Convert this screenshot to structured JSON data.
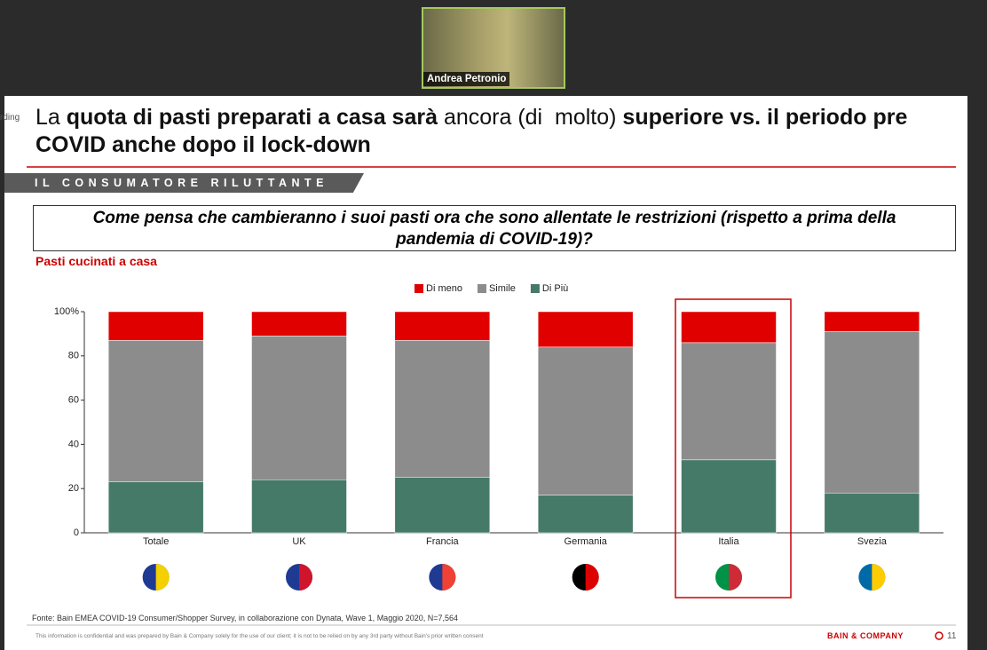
{
  "call": {
    "participant": "Andrea Petronio",
    "recording_fragment": "rding"
  },
  "slide": {
    "title_parts": [
      {
        "text": "La ",
        "bold": false
      },
      {
        "text": "quota di pasti preparati a casa sarà",
        "bold": true
      },
      {
        "text": " ancora (di  molto) ",
        "bold": false
      },
      {
        "text": "superiore vs. il periodo pre COVID anche dopo il lock-down",
        "bold": true
      }
    ],
    "section": "IL CONSUMATORE RILUTTANTE",
    "question": "Come pensa che cambieranno i suoi pasti ora che sono allentate le restrizioni (rispetto a prima della pandemia di COVID-19)?",
    "chart_label": "Pasti cucinati a casa",
    "source": "Fonte: Bain EMEA COVID-19 Consumer/Shopper Survey, in collaborazione con Dynata, Wave 1, Maggio 2020, N=7,564",
    "disclaimer": "This information is confidential and was prepared by Bain & Company solely for the use of our client; it is not to be relied on by any 3rd party without Bain's prior written consent",
    "brand": "BAIN & COMPANY",
    "page_number": "11"
  },
  "chart_data": {
    "type": "stacked_bar",
    "categories": [
      "Totale",
      "UK",
      "Francia",
      "Germania",
      "Italia",
      "Svezia"
    ],
    "series": [
      {
        "name": "Di meno",
        "color": "#e00000",
        "values": [
          13,
          11,
          13,
          16,
          14,
          9
        ]
      },
      {
        "name": "Simile",
        "color": "#8c8c8c",
        "values": [
          64,
          65,
          62,
          67,
          53,
          73
        ]
      },
      {
        "name": "Di Più",
        "color": "#467a68",
        "values": [
          23,
          24,
          25,
          17,
          33,
          18
        ]
      }
    ],
    "ylim": [
      0,
      100
    ],
    "yticks": [
      0,
      20,
      40,
      60,
      80,
      {
        "value": 100,
        "label": "100%"
      }
    ],
    "highlight_category": 4
  }
}
